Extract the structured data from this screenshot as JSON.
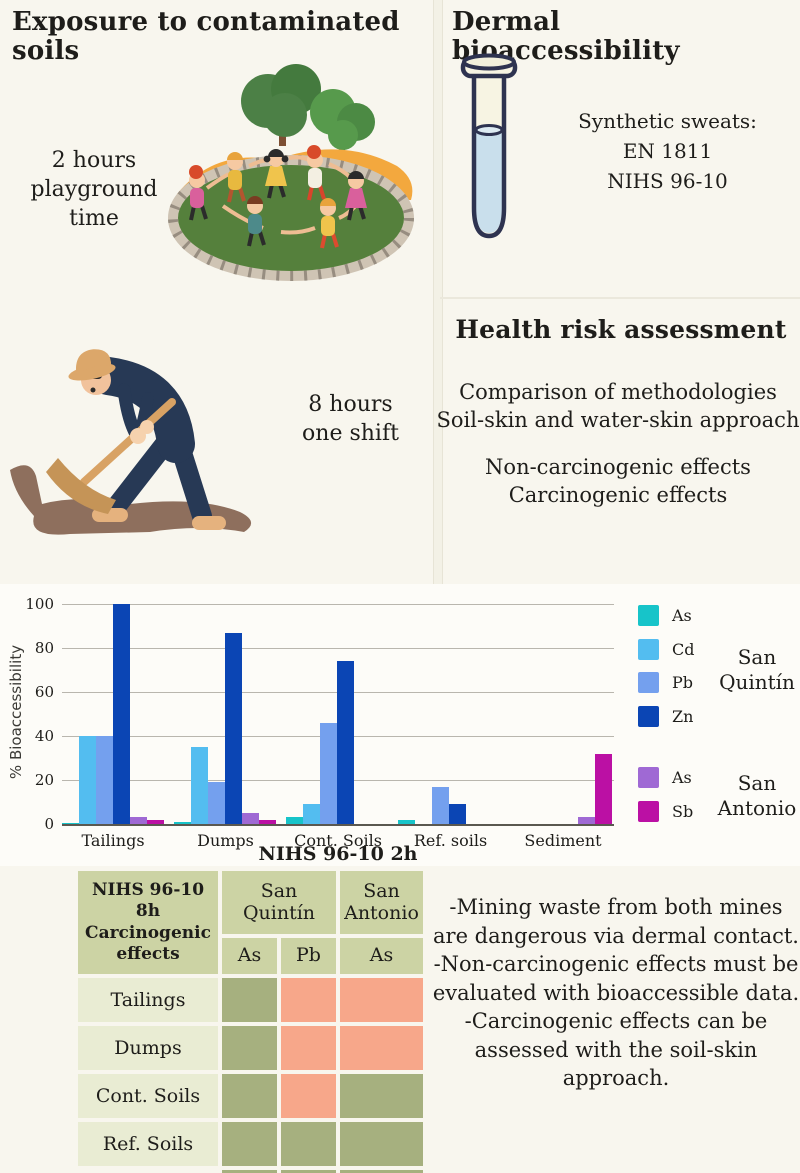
{
  "exposure": {
    "title": "Exposure to contaminated soils",
    "playground_lines": [
      "2 hours",
      "playground",
      "time"
    ],
    "miner_lines": [
      "8 hours",
      "one shift"
    ]
  },
  "dermal": {
    "title": "Dermal bioaccessibility",
    "lines": [
      "Synthetic sweats:",
      "EN 1811",
      "NIHS 96-10"
    ]
  },
  "health": {
    "title": "Health risk assessment",
    "lines": [
      "Comparison of methodologies",
      "Soil-skin and water-skin approach",
      "Non-carcinogenic effects",
      "Carcinogenic effects"
    ]
  },
  "chart_data": {
    "type": "bar",
    "title": "",
    "xlabel": "NIHS 96-10 2h",
    "ylabel": "% Bioaccessibility",
    "ylim": [
      0,
      100
    ],
    "yticks": [
      0,
      20,
      40,
      60,
      80,
      100
    ],
    "grid": true,
    "legend_position": "right",
    "categories": [
      "Tailings",
      "Dumps",
      "Cont. Soils",
      "Ref. soils",
      "Sediment"
    ],
    "series": [
      {
        "name": "As",
        "site": "San Quintín",
        "color": "#17c4c9",
        "values": [
          0.5,
          1,
          3,
          2,
          0
        ]
      },
      {
        "name": "Cd",
        "site": "San Quintín",
        "color": "#53bdf0",
        "values": [
          40,
          35,
          9,
          0,
          0
        ]
      },
      {
        "name": "Pb",
        "site": "San Quintín",
        "color": "#74a0ee",
        "values": [
          40,
          19,
          46,
          17,
          0
        ]
      },
      {
        "name": "Zn",
        "site": "San Quintín",
        "color": "#0b45b4",
        "values": [
          100,
          87,
          74,
          9,
          0
        ]
      },
      {
        "name": "As",
        "site": "San Antonio",
        "color": "#9f69d4",
        "values": [
          3,
          5,
          0,
          0,
          3
        ]
      },
      {
        "name": "Sb",
        "site": "San Antonio",
        "color": "#bb10a4",
        "values": [
          2,
          2,
          0,
          0,
          32
        ]
      }
    ],
    "legend_groups": [
      {
        "site_lines": [
          "San",
          "Quintín"
        ],
        "entries": [
          {
            "label": "As",
            "color": "#17c4c9"
          },
          {
            "label": "Cd",
            "color": "#53bdf0"
          },
          {
            "label": "Pb",
            "color": "#74a0ee"
          },
          {
            "label": "Zn",
            "color": "#0b45b4"
          }
        ]
      },
      {
        "site_lines": [
          "San",
          "Antonio"
        ],
        "entries": [
          {
            "label": "As",
            "color": "#9f69d4"
          },
          {
            "label": "Sb",
            "color": "#bb10a4"
          }
        ]
      }
    ]
  },
  "table": {
    "corner_lines": [
      "NIHS 96-10 8h",
      "Carcinogenic",
      "effects"
    ],
    "group_headers": [
      "San Quintín",
      "San Antonio"
    ],
    "sub_headers": [
      "As",
      "Pb",
      "As"
    ],
    "rows": [
      {
        "label": "Tailings",
        "cells": [
          "green",
          "salmon",
          "salmon"
        ]
      },
      {
        "label": "Dumps",
        "cells": [
          "green",
          "salmon",
          "salmon"
        ]
      },
      {
        "label": "Cont. Soils",
        "cells": [
          "green",
          "salmon",
          "green"
        ]
      },
      {
        "label": "Ref. Soils",
        "cells": [
          "green",
          "green",
          "green"
        ]
      }
    ],
    "cutoff_row_cells": [
      "green",
      "green",
      "green"
    ],
    "cell_colors": {
      "green": "#a6b07f",
      "salmon": "#f7a78a"
    }
  },
  "conclusions": {
    "lines": [
      "-Mining waste from both mines are dangerous via dermal contact.",
      "-Non-carcinogenic effects must be evaluated with bioaccessible data.",
      "-Carcinogenic effects can be assessed with the soil-skin approach."
    ]
  }
}
